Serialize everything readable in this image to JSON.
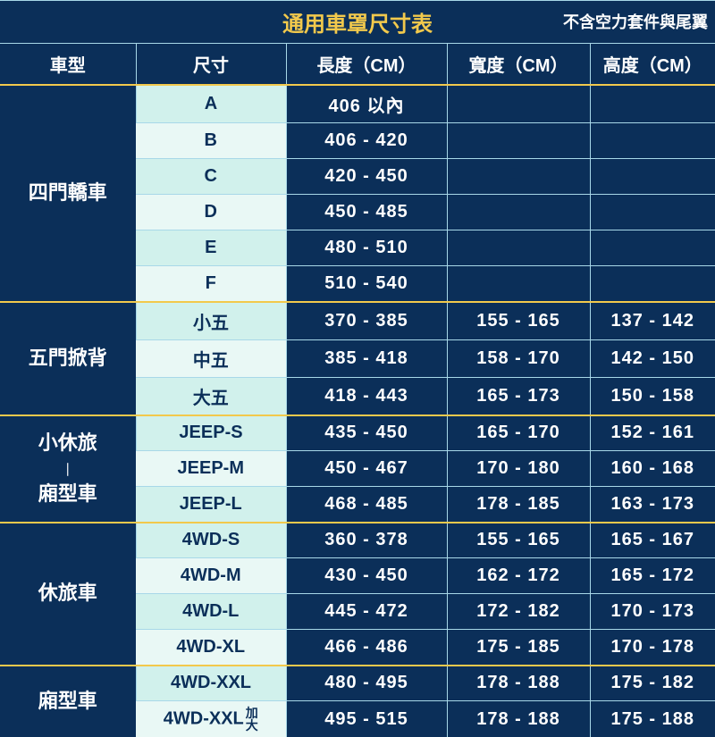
{
  "title": "通用車罩尺寸表",
  "note": "不含空力套件與尾翼",
  "columns": [
    "車型",
    "尺寸",
    "長度（CM）",
    "寬度（CM）",
    "高度（CM）"
  ],
  "groups": [
    {
      "cat": "四門轎車",
      "rows": [
        {
          "size": "A",
          "len": "406 以內",
          "w": "",
          "h": ""
        },
        {
          "size": "B",
          "len": "406 - 420",
          "w": "",
          "h": ""
        },
        {
          "size": "C",
          "len": "420 - 450",
          "w": "",
          "h": ""
        },
        {
          "size": "D",
          "len": "450 - 485",
          "w": "",
          "h": ""
        },
        {
          "size": "E",
          "len": "480 - 510",
          "w": "",
          "h": ""
        },
        {
          "size": "F",
          "len": "510 - 540",
          "w": "",
          "h": ""
        }
      ]
    },
    {
      "cat": "五門掀背",
      "rows": [
        {
          "size": "小五",
          "len": "370 - 385",
          "w": "155 - 165",
          "h": "137 - 142"
        },
        {
          "size": "中五",
          "len": "385 - 418",
          "w": "158 - 170",
          "h": "142 - 150"
        },
        {
          "size": "大五",
          "len": "418 - 443",
          "w": "165 - 173",
          "h": "150 - 158"
        }
      ]
    },
    {
      "cat": "小休旅｜廂型車",
      "cat_html": "小休旅<br><span style='font-size:14px'>｜</span><br>廂型車",
      "rows": [
        {
          "size": "JEEP-S",
          "len": "435 - 450",
          "w": "165 - 170",
          "h": "152 - 161"
        },
        {
          "size": "JEEP-M",
          "len": "450 - 467",
          "w": "170 - 180",
          "h": "160 - 168"
        },
        {
          "size": "JEEP-L",
          "len": "468 - 485",
          "w": "178 - 185",
          "h": "163 - 173"
        }
      ]
    },
    {
      "cat": "休旅車",
      "rows": [
        {
          "size": "4WD-S",
          "len": "360 - 378",
          "w": "155 - 165",
          "h": "165 - 167"
        },
        {
          "size": "4WD-M",
          "len": "430 - 450",
          "w": "162 - 172",
          "h": "165 - 172"
        },
        {
          "size": "4WD-L",
          "len": "445 - 472",
          "w": "172 - 182",
          "h": "170 - 173"
        },
        {
          "size": "4WD-XL",
          "len": "466 - 486",
          "w": "175 - 185",
          "h": "170 - 178"
        }
      ]
    },
    {
      "cat": "廂型車",
      "rows": [
        {
          "size": "4WD-XXL",
          "len": "480 - 495",
          "w": "178 - 188",
          "h": "175 - 182"
        },
        {
          "size": "4WD-XXL",
          "size_suffix": "加大",
          "len": "495 - 515",
          "w": "178 - 188",
          "h": "175 - 188"
        }
      ]
    }
  ],
  "colors": {
    "bg_dark": "#0b2f59",
    "accent_yellow": "#f2c94c",
    "size_alt_a": "#d1f1ec",
    "size_alt_b": "#e9f8f5",
    "grid": "#a8d8e8"
  }
}
